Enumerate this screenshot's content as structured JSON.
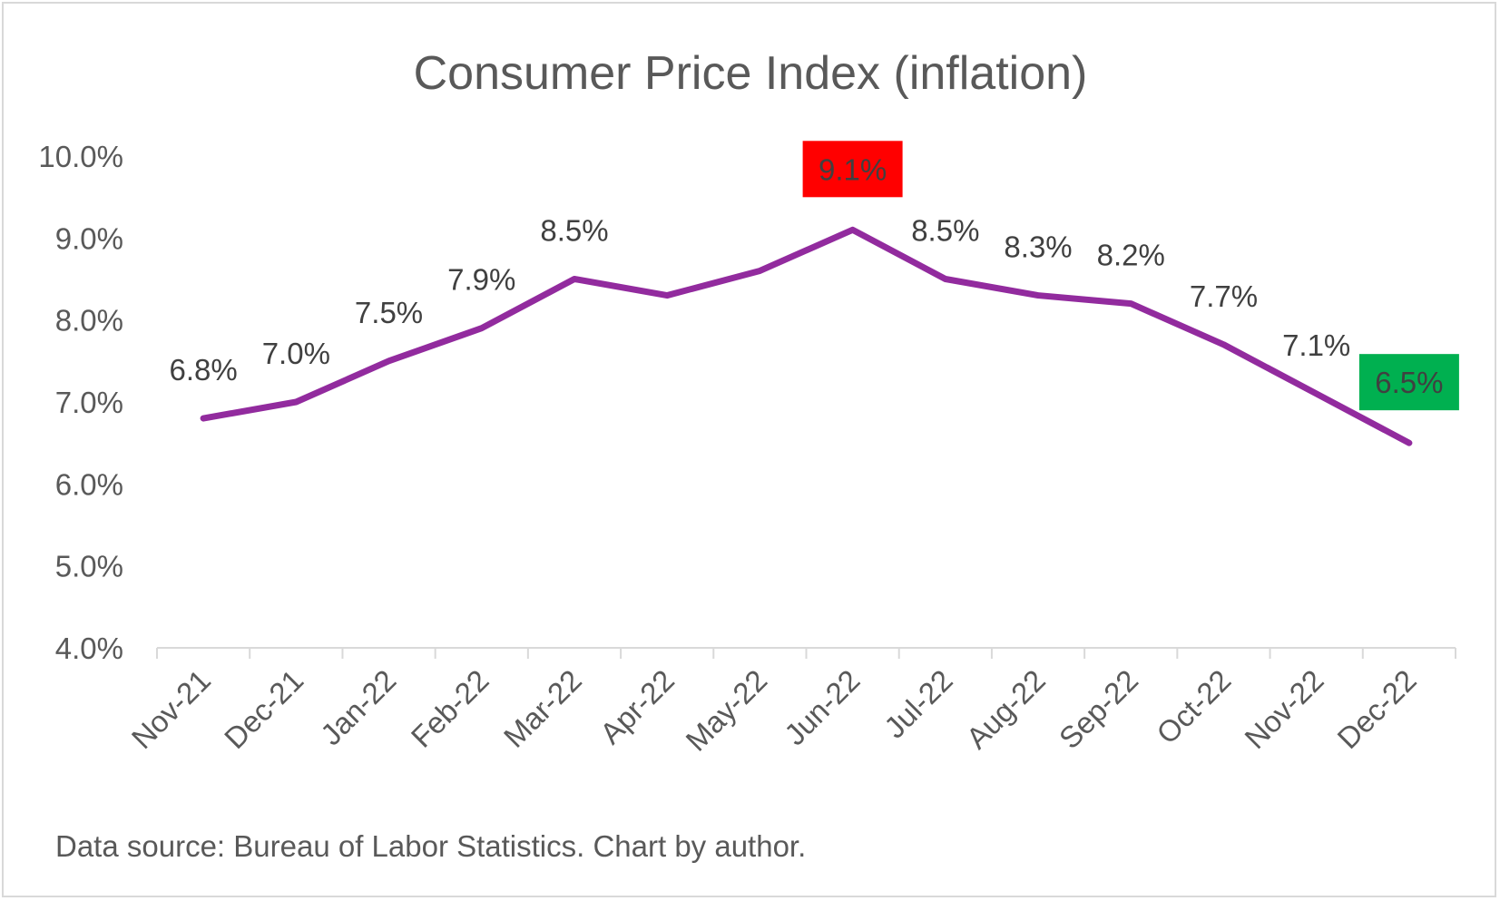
{
  "chart_data": {
    "type": "line",
    "title": "Consumer Price Index (inflation)",
    "xlabel": "",
    "ylabel": "",
    "categories": [
      "Nov-21",
      "Dec-21",
      "Jan-22",
      "Feb-22",
      "Mar-22",
      "Apr-22",
      "May-22",
      "Jun-22",
      "Jul-22",
      "Aug-22",
      "Sep-22",
      "Oct-22",
      "Nov-22",
      "Dec-22"
    ],
    "series": [
      {
        "values": [
          6.8,
          7.0,
          7.5,
          7.9,
          8.5,
          8.3,
          8.6,
          9.1,
          8.5,
          8.3,
          8.2,
          7.7,
          7.1,
          6.5
        ],
        "color": "#922b9e"
      }
    ],
    "data_labels": [
      {
        "index": 0,
        "text": "6.8%"
      },
      {
        "index": 1,
        "text": "7.0%"
      },
      {
        "index": 2,
        "text": "7.5%"
      },
      {
        "index": 3,
        "text": "7.9%"
      },
      {
        "index": 4,
        "text": "8.5%"
      },
      {
        "index": 7,
        "text": "9.1%",
        "highlight": "#ff0000"
      },
      {
        "index": 8,
        "text": "8.5%"
      },
      {
        "index": 9,
        "text": "8.3%"
      },
      {
        "index": 10,
        "text": "8.2%"
      },
      {
        "index": 11,
        "text": "7.7%"
      },
      {
        "index": 12,
        "text": "7.1%"
      },
      {
        "index": 13,
        "text": "6.5%",
        "highlight": "#00b050"
      }
    ],
    "ylim": [
      4.0,
      10.0
    ],
    "yticks": [
      "4.0%",
      "5.0%",
      "6.0%",
      "7.0%",
      "8.0%",
      "9.0%",
      "10.0%"
    ],
    "grid": false,
    "legend": "none"
  },
  "source_note": "Data source: Bureau of Labor Statistics. Chart by author."
}
